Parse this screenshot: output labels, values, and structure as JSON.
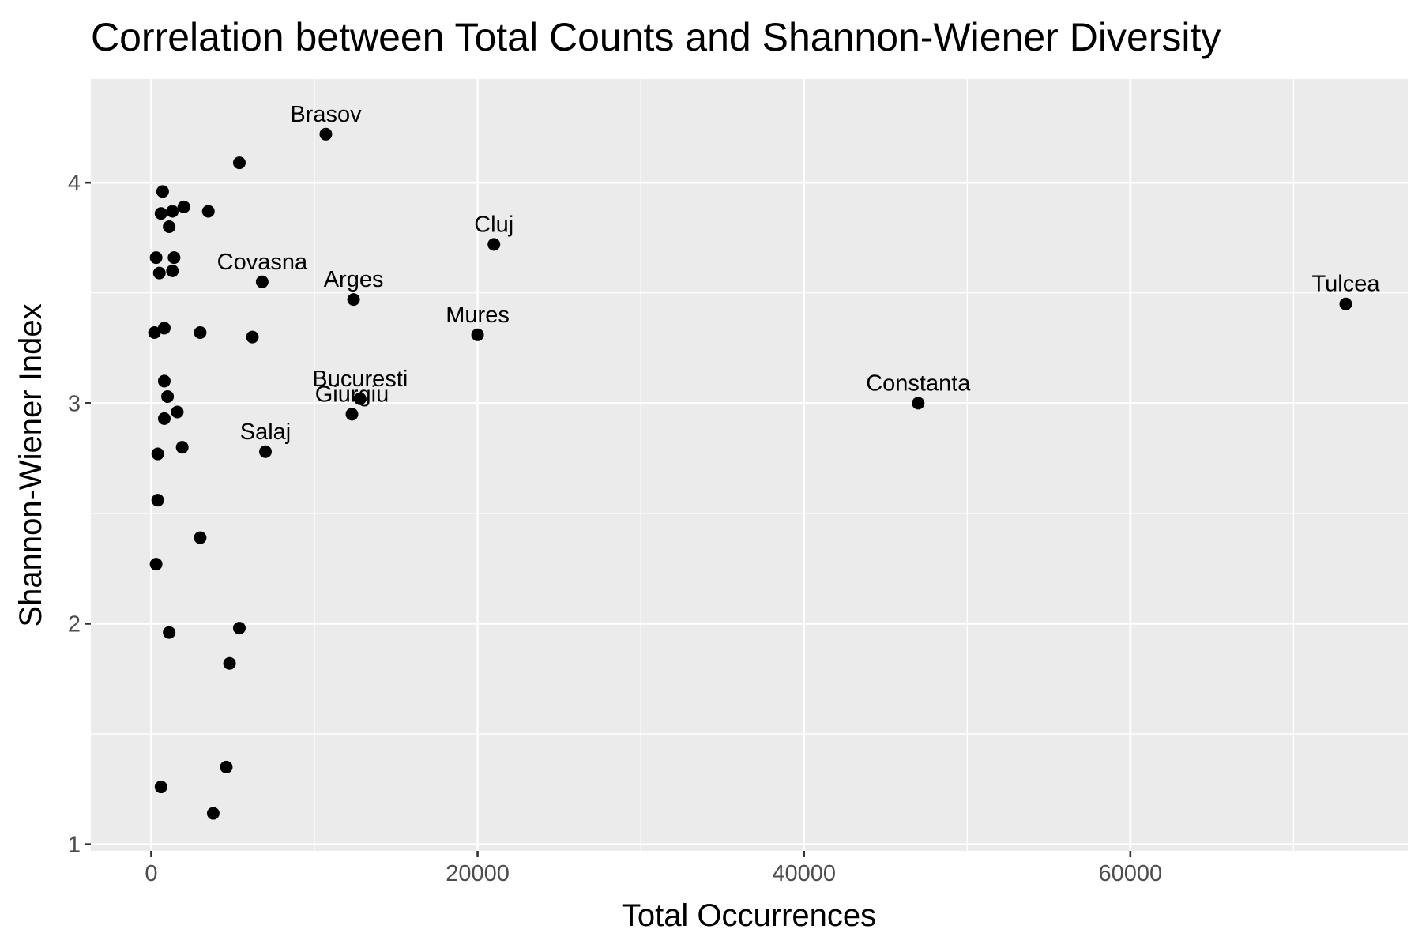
{
  "chart_data": {
    "type": "scatter",
    "title": "Correlation between Total Counts and Shannon-Wiener Diversity",
    "xlabel": "Total Occurrences",
    "ylabel": "Shannon-Wiener Index",
    "xlim": [
      -3700,
      77000
    ],
    "ylim": [
      0.97,
      4.47
    ],
    "x_ticks": [
      0,
      20000,
      40000,
      60000
    ],
    "y_ticks": [
      1,
      2,
      3,
      4
    ],
    "x_minor_ticks": [
      10000,
      30000,
      50000,
      70000
    ],
    "y_minor_ticks": [
      1.5,
      2.5,
      3.5
    ],
    "grid": true,
    "colors": {
      "panel_background": "#ebebeb",
      "grid": "#ffffff",
      "points": "#000000",
      "tick_marks": "#333333"
    },
    "points": [
      {
        "x": 10700,
        "y": 4.22,
        "label": "Brasov"
      },
      {
        "x": 21000,
        "y": 3.72,
        "label": "Cluj"
      },
      {
        "x": 6800,
        "y": 3.55,
        "label": "Covasna"
      },
      {
        "x": 12400,
        "y": 3.47,
        "label": "Arges"
      },
      {
        "x": 73200,
        "y": 3.45,
        "label": "Tulcea"
      },
      {
        "x": 20000,
        "y": 3.31,
        "label": "Mures"
      },
      {
        "x": 12800,
        "y": 3.02,
        "label": "Bucuresti"
      },
      {
        "x": 12300,
        "y": 2.95,
        "label": "Giurgiu"
      },
      {
        "x": 47000,
        "y": 3.0,
        "label": "Constanta"
      },
      {
        "x": 7000,
        "y": 2.78,
        "label": "Salaj"
      },
      {
        "x": 5400,
        "y": 4.09,
        "label": ""
      },
      {
        "x": 700,
        "y": 3.96,
        "label": ""
      },
      {
        "x": 2000,
        "y": 3.89,
        "label": ""
      },
      {
        "x": 3500,
        "y": 3.87,
        "label": ""
      },
      {
        "x": 1300,
        "y": 3.87,
        "label": ""
      },
      {
        "x": 600,
        "y": 3.86,
        "label": ""
      },
      {
        "x": 1100,
        "y": 3.8,
        "label": ""
      },
      {
        "x": 300,
        "y": 3.66,
        "label": ""
      },
      {
        "x": 1400,
        "y": 3.66,
        "label": ""
      },
      {
        "x": 500,
        "y": 3.59,
        "label": ""
      },
      {
        "x": 1300,
        "y": 3.6,
        "label": ""
      },
      {
        "x": 200,
        "y": 3.32,
        "label": ""
      },
      {
        "x": 800,
        "y": 3.34,
        "label": ""
      },
      {
        "x": 3000,
        "y": 3.32,
        "label": ""
      },
      {
        "x": 6200,
        "y": 3.3,
        "label": ""
      },
      {
        "x": 800,
        "y": 3.1,
        "label": ""
      },
      {
        "x": 1000,
        "y": 3.03,
        "label": ""
      },
      {
        "x": 1600,
        "y": 2.96,
        "label": ""
      },
      {
        "x": 800,
        "y": 2.93,
        "label": ""
      },
      {
        "x": 1900,
        "y": 2.8,
        "label": ""
      },
      {
        "x": 400,
        "y": 2.77,
        "label": ""
      },
      {
        "x": 400,
        "y": 2.56,
        "label": ""
      },
      {
        "x": 3000,
        "y": 2.39,
        "label": ""
      },
      {
        "x": 300,
        "y": 2.27,
        "label": ""
      },
      {
        "x": 5400,
        "y": 1.98,
        "label": ""
      },
      {
        "x": 1100,
        "y": 1.96,
        "label": ""
      },
      {
        "x": 4800,
        "y": 1.82,
        "label": ""
      },
      {
        "x": 4600,
        "y": 1.35,
        "label": ""
      },
      {
        "x": 600,
        "y": 1.26,
        "label": ""
      },
      {
        "x": 3800,
        "y": 1.14,
        "label": ""
      }
    ]
  }
}
